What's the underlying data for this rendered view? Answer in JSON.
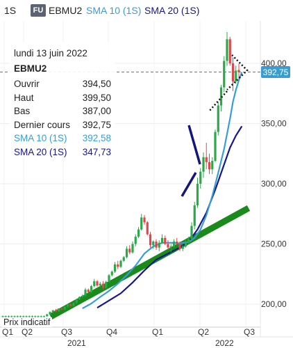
{
  "header": {
    "interval": "1S",
    "badge": "FU",
    "symbol": "EBMU2",
    "sma10_label": "SMA 10 (1S)",
    "sma20_label": "SMA 20 (1S)"
  },
  "info_panel": {
    "date": "lundi 13 juin 2022",
    "symbol": "EBMU2",
    "rows": [
      {
        "label": "Ouvrir",
        "value": "394,50"
      },
      {
        "label": "Haut",
        "value": "399,50"
      },
      {
        "label": "Bas",
        "value": "387,00"
      },
      {
        "label": "Dernier cours",
        "value": "392,75"
      },
      {
        "label": "SMA 10 (1S)",
        "value": "392,58"
      },
      {
        "label": "SMA 20 (1S)",
        "value": "347,73"
      }
    ]
  },
  "footer_label": "Prix indicatif",
  "price_tag": "392,75",
  "colors": {
    "up": "#2aa84a",
    "down": "#e0474c",
    "sma10": "#3a9dd2",
    "sma20": "#16168f",
    "trendline": "#1a8a1a",
    "drawing": "#15157a",
    "price_line": "#d64545"
  },
  "chart_data": {
    "type": "candlestick",
    "y_ticks": [
      "200,00",
      "250,00",
      "300,00",
      "350,00",
      "400,00"
    ],
    "x_ticks": [
      "Q1",
      "Q2",
      "Q3",
      "Q4",
      "Q1",
      "Q2",
      "Q3"
    ],
    "year_labels": [
      "2021",
      "2022"
    ],
    "ylim": [
      180,
      427
    ],
    "last_price": 392.75,
    "candles": [
      [
        190.0,
        190.5,
        189.0,
        190.0
      ],
      [
        190.0,
        190.5,
        189.0,
        190.0
      ],
      [
        190.0,
        190.5,
        189.0,
        190.0
      ],
      [
        190.0,
        190.5,
        189.0,
        190.0
      ],
      [
        190.0,
        190.5,
        189.0,
        190.0
      ],
      [
        190.0,
        190.5,
        189.0,
        190.0
      ],
      [
        190.0,
        190.5,
        189.0,
        190.0
      ],
      [
        190.0,
        190.5,
        189.0,
        190.0
      ],
      [
        190.0,
        190.5,
        189.0,
        190.0
      ],
      [
        190.0,
        190.5,
        189.0,
        190.0
      ],
      [
        190.0,
        190.5,
        189.0,
        190.0
      ],
      [
        190.0,
        190.5,
        189.0,
        190.0
      ],
      [
        190.0,
        190.5,
        189.0,
        190.0
      ],
      [
        190.0,
        190.5,
        189.0,
        190.0
      ],
      [
        190.0,
        190.5,
        189.0,
        190.0
      ],
      [
        190.0,
        192.0,
        189.5,
        191.5
      ],
      [
        191.5,
        194.0,
        191.0,
        193.5
      ],
      [
        193.5,
        195.0,
        193.0,
        195.0
      ],
      [
        195.0,
        196.0,
        193.5,
        194.0
      ],
      [
        194.0,
        196.5,
        193.5,
        196.5
      ],
      [
        196.5,
        197.0,
        195.0,
        195.5
      ],
      [
        195.5,
        198.0,
        195.0,
        198.0
      ],
      [
        198.0,
        200.5,
        197.0,
        200.0
      ],
      [
        200.0,
        200.5,
        197.5,
        198.5
      ],
      [
        198.5,
        201.5,
        198.0,
        201.0
      ],
      [
        201.0,
        204.5,
        200.0,
        204.0
      ],
      [
        204.0,
        206.5,
        203.5,
        206.0
      ],
      [
        206.0,
        208.0,
        205.0,
        207.0
      ],
      [
        207.0,
        213.5,
        206.0,
        212.0
      ],
      [
        212.0,
        213.0,
        209.0,
        210.0
      ],
      [
        210.0,
        216.0,
        209.0,
        215.0
      ],
      [
        215.0,
        221.0,
        214.0,
        219.0
      ],
      [
        219.0,
        220.0,
        214.5,
        215.5
      ],
      [
        215.5,
        218.5,
        214.0,
        217.0
      ],
      [
        217.0,
        219.0,
        212.0,
        213.5
      ],
      [
        213.5,
        219.5,
        213.0,
        218.5
      ],
      [
        218.5,
        225.0,
        218.0,
        224.0
      ],
      [
        224.0,
        228.0,
        223.0,
        227.0
      ],
      [
        227.0,
        235.0,
        226.0,
        233.0
      ],
      [
        233.0,
        236.0,
        229.0,
        231.0
      ],
      [
        231.0,
        237.0,
        230.0,
        236.0
      ],
      [
        236.0,
        240.0,
        235.0,
        239.0
      ],
      [
        239.0,
        248.0,
        238.0,
        246.0
      ],
      [
        246.0,
        249.0,
        241.5,
        243.0
      ],
      [
        243.0,
        252.0,
        242.0,
        250.0
      ],
      [
        250.0,
        258.0,
        248.0,
        256.0
      ],
      [
        256.0,
        264.0,
        255.0,
        262.0
      ],
      [
        262.0,
        275.0,
        261.0,
        272.0
      ],
      [
        272.0,
        274.0,
        266.0,
        268.0
      ],
      [
        268.0,
        269.0,
        257.0,
        258.0
      ],
      [
        258.0,
        260.0,
        247.0,
        249.0
      ],
      [
        249.0,
        253.0,
        246.0,
        252.0
      ],
      [
        252.0,
        254.0,
        245.0,
        247.0
      ],
      [
        247.0,
        253.0,
        244.0,
        251.0
      ],
      [
        251.0,
        258.0,
        250.0,
        255.0
      ],
      [
        255.0,
        257.0,
        249.0,
        250.0
      ],
      [
        250.0,
        253.0,
        245.0,
        247.0
      ],
      [
        247.0,
        250.0,
        243.0,
        248.0
      ],
      [
        248.0,
        254.0,
        247.0,
        252.0
      ],
      [
        252.0,
        255.0,
        249.0,
        250.0
      ],
      [
        250.0,
        252.0,
        244.0,
        246.0
      ],
      [
        246.0,
        249.0,
        244.0,
        248.0
      ],
      [
        248.0,
        253.0,
        247.0,
        251.0
      ],
      [
        251.0,
        256.0,
        250.0,
        254.0
      ],
      [
        254.0,
        268.0,
        253.0,
        265.0
      ],
      [
        265.0,
        285.0,
        262.0,
        282.0
      ],
      [
        282.0,
        305.0,
        280.0,
        300.0
      ],
      [
        300.0,
        313.0,
        296.0,
        310.0
      ],
      [
        310.0,
        326.0,
        305.0,
        322.0
      ],
      [
        322.0,
        334.0,
        312.0,
        318.0
      ],
      [
        318.0,
        325.0,
        308.0,
        312.0
      ],
      [
        312.0,
        322.0,
        308.0,
        319.0
      ],
      [
        319.0,
        345.0,
        318.0,
        343.0
      ],
      [
        343.0,
        368.0,
        340.0,
        365.0
      ],
      [
        365.0,
        382.0,
        360.0,
        380.0
      ],
      [
        380.0,
        406.0,
        376.0,
        402.0
      ],
      [
        402.0,
        426.0,
        398.0,
        420.0
      ],
      [
        420.0,
        422.0,
        398.0,
        400.0
      ],
      [
        400.0,
        405.0,
        377.0,
        385.0
      ],
      [
        385.0,
        398.0,
        383.0,
        394.0
      ],
      [
        394.5,
        399.5,
        387.0,
        392.75
      ]
    ],
    "sma10": [
      [
        27,
        196.5
      ],
      [
        30,
        200.5
      ],
      [
        33,
        206.0
      ],
      [
        36,
        211.0
      ],
      [
        39,
        217.0
      ],
      [
        42,
        224.0
      ],
      [
        45,
        232.0
      ],
      [
        48,
        242.0
      ],
      [
        51,
        248.0
      ],
      [
        54,
        251.0
      ],
      [
        57,
        251.0
      ],
      [
        60,
        250.5
      ],
      [
        63,
        251.5
      ],
      [
        65,
        255.0
      ],
      [
        67,
        262.0
      ],
      [
        69,
        274.0
      ],
      [
        71,
        290.0
      ],
      [
        73,
        309.0
      ],
      [
        75,
        329.0
      ],
      [
        77,
        354.0
      ],
      [
        78,
        368.0
      ],
      [
        79,
        378.0
      ],
      [
        80,
        386.0
      ],
      [
        81,
        392.58
      ]
    ],
    "sma20": [
      [
        32,
        197.0
      ],
      [
        36,
        203.0
      ],
      [
        40,
        209.0
      ],
      [
        44,
        218.0
      ],
      [
        48,
        228.0
      ],
      [
        52,
        237.0
      ],
      [
        56,
        242.0
      ],
      [
        60,
        247.0
      ],
      [
        63,
        252.0
      ],
      [
        66,
        262.0
      ],
      [
        69,
        276.0
      ],
      [
        72,
        295.0
      ],
      [
        75,
        316.0
      ],
      [
        77,
        330.0
      ],
      [
        79,
        340.0
      ],
      [
        81,
        347.73
      ]
    ]
  }
}
